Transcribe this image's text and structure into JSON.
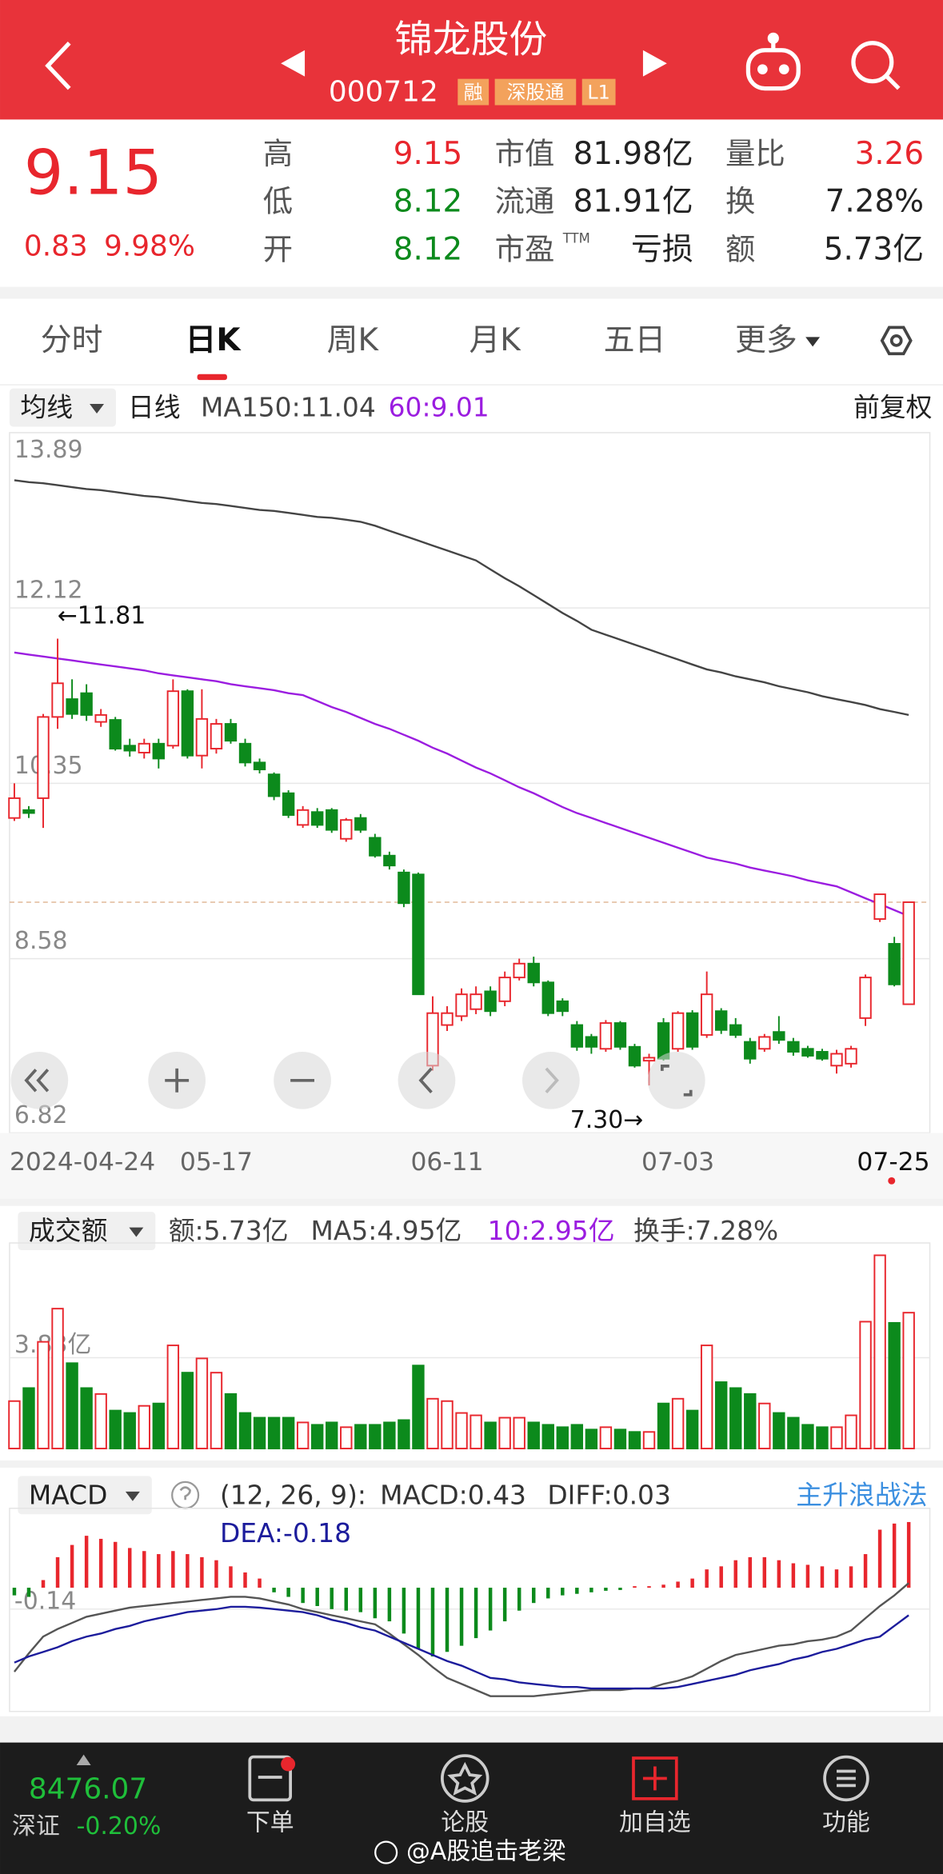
{
  "header": {
    "title": "锦龙股份",
    "code": "000712",
    "badges": [
      "融",
      "深股通",
      "L1"
    ]
  },
  "quote": {
    "price": "9.15",
    "change": "0.83",
    "pct": "9.98%",
    "stats": [
      {
        "label": "高",
        "value": "9.15"
      },
      {
        "label": "低",
        "value": "8.12"
      },
      {
        "label": "开",
        "value": "8.12"
      },
      {
        "label": "市值",
        "value": "81.98亿"
      },
      {
        "label": "流通",
        "value": "81.91亿"
      },
      {
        "label": "市盈",
        "sup": "TTM",
        "value": "亏损"
      },
      {
        "label": "量比",
        "value": "3.26"
      },
      {
        "label": "换",
        "value": "7.28%"
      },
      {
        "label": "额",
        "value": "5.73亿"
      }
    ]
  },
  "tabs": [
    "分时",
    "日K",
    "周K",
    "月K",
    "五日",
    "更多"
  ],
  "chart_data": [
    {
      "type": "candlestick",
      "legend": {
        "selector": "均线",
        "period": "日线",
        "ma150": "MA150:11.04",
        "ma60": "60:9.01",
        "adjust": "前复权"
      },
      "categories": [
        "2024-04-24",
        null,
        null,
        null,
        null,
        null,
        null,
        null,
        null,
        null,
        null,
        null,
        null,
        null,
        "05-17",
        null,
        null,
        null,
        null,
        null,
        null,
        null,
        null,
        null,
        null,
        null,
        null,
        null,
        null,
        null,
        "06-11",
        null,
        null,
        null,
        null,
        null,
        null,
        null,
        null,
        null,
        null,
        null,
        null,
        null,
        null,
        null,
        "07-03",
        null,
        null,
        null,
        null,
        null,
        null,
        null,
        null,
        null,
        null,
        null,
        null,
        null,
        null,
        null,
        "07-25"
      ],
      "open": [
        10.0,
        10.08,
        10.2,
        11.02,
        11.2,
        11.26,
        10.97,
        10.99,
        10.73,
        10.66,
        10.75,
        10.73,
        11.28,
        10.63,
        10.7,
        10.95,
        10.75,
        10.56,
        10.44,
        10.25,
        9.93,
        10.06,
        10.08,
        9.79,
        10.0,
        9.8,
        9.62,
        9.45,
        9.43,
        7.5,
        7.91,
        8.0,
        8.07,
        8.25,
        8.15,
        8.39,
        8.53,
        8.34,
        8.15,
        7.91,
        7.79,
        7.67,
        7.93,
        7.69,
        7.55,
        7.93,
        7.67,
        8.03,
        7.81,
        8.05,
        7.91,
        7.74,
        7.67,
        7.84,
        7.74,
        7.67,
        7.64,
        7.5,
        7.52,
        7.98,
        8.98,
        8.73,
        8.12
      ],
      "close": [
        10.2,
        10.05,
        11.02,
        11.36,
        11.05,
        11.04,
        11.04,
        10.7,
        10.68,
        10.75,
        10.6,
        11.28,
        10.63,
        11.0,
        10.95,
        10.78,
        10.56,
        10.49,
        10.22,
        10.03,
        10.08,
        9.93,
        9.88,
        9.98,
        9.88,
        9.62,
        9.52,
        9.14,
        8.22,
        8.03,
        8.03,
        8.22,
        8.22,
        8.05,
        8.39,
        8.53,
        8.34,
        8.03,
        8.05,
        7.69,
        7.69,
        7.93,
        7.69,
        7.5,
        7.58,
        7.57,
        8.03,
        7.69,
        8.22,
        7.86,
        7.81,
        7.57,
        7.79,
        7.76,
        7.64,
        7.6,
        7.57,
        7.62,
        7.67,
        8.39,
        9.23,
        8.32,
        9.15
      ],
      "high": [
        10.35,
        10.12,
        11.05,
        11.81,
        11.4,
        11.35,
        11.1,
        11.02,
        10.8,
        10.8,
        10.8,
        11.4,
        11.3,
        11.3,
        11.0,
        11.0,
        10.8,
        10.6,
        10.46,
        10.28,
        10.12,
        10.1,
        10.1,
        10.0,
        10.04,
        9.84,
        9.66,
        9.48,
        9.45,
        8.2,
        8.1,
        8.28,
        8.3,
        8.3,
        8.45,
        8.58,
        8.6,
        8.36,
        8.18,
        7.95,
        7.82,
        7.96,
        7.95,
        7.72,
        7.62,
        7.98,
        8.05,
        8.06,
        8.45,
        8.08,
        7.98,
        7.78,
        7.82,
        8.0,
        7.78,
        7.7,
        7.67,
        7.66,
        7.7,
        8.42,
        9.23,
        8.8,
        9.15
      ],
      "low": [
        9.97,
        10.0,
        9.9,
        10.9,
        11.0,
        10.98,
        10.92,
        10.68,
        10.62,
        10.6,
        10.5,
        10.7,
        10.6,
        10.5,
        10.65,
        10.75,
        10.52,
        10.45,
        10.18,
        10.0,
        9.9,
        9.9,
        9.85,
        9.76,
        9.85,
        9.6,
        9.48,
        9.1,
        8.22,
        7.45,
        7.85,
        7.95,
        8.02,
        8.0,
        8.1,
        8.36,
        8.3,
        8.0,
        8.0,
        7.65,
        7.62,
        7.64,
        7.66,
        7.48,
        7.3,
        7.55,
        7.64,
        7.66,
        7.78,
        7.82,
        7.78,
        7.52,
        7.64,
        7.72,
        7.6,
        7.58,
        7.55,
        7.42,
        7.48,
        7.9,
        8.95,
        8.3,
        8.12
      ],
      "up_color": "#e8262d",
      "down_color": "#0c8a1c",
      "series": [
        {
          "color": "#444444",
          "values": [
            13.41,
            13.39,
            13.38,
            13.36,
            13.34,
            13.32,
            13.31,
            13.29,
            13.27,
            13.25,
            13.24,
            13.22,
            13.2,
            13.18,
            13.17,
            13.15,
            13.13,
            13.11,
            13.1,
            13.08,
            13.06,
            13.04,
            13.03,
            13.01,
            12.99,
            12.95,
            12.9,
            12.85,
            12.8,
            12.75,
            12.7,
            12.65,
            12.6,
            12.51,
            12.42,
            12.34,
            12.25,
            12.16,
            12.07,
            11.99,
            11.9,
            11.85,
            11.8,
            11.75,
            11.7,
            11.65,
            11.6,
            11.55,
            11.5,
            11.47,
            11.43,
            11.4,
            11.37,
            11.33,
            11.3,
            11.27,
            11.23,
            11.2,
            11.17,
            11.14,
            11.1,
            11.07,
            11.04
          ]
        },
        {
          "color": "#9b1de0",
          "values": [
            11.67,
            11.65,
            11.63,
            11.61,
            11.59,
            11.57,
            11.55,
            11.53,
            11.51,
            11.49,
            11.46,
            11.44,
            11.42,
            11.4,
            11.38,
            11.35,
            11.33,
            11.31,
            11.29,
            11.26,
            11.24,
            11.18,
            11.12,
            11.07,
            11.01,
            10.95,
            10.9,
            10.84,
            10.78,
            10.71,
            10.65,
            10.58,
            10.51,
            10.45,
            10.38,
            10.31,
            10.25,
            10.18,
            10.11,
            10.05,
            10.0,
            9.95,
            9.9,
            9.85,
            9.8,
            9.75,
            9.7,
            9.65,
            9.6,
            9.57,
            9.54,
            9.5,
            9.47,
            9.44,
            9.41,
            9.37,
            9.34,
            9.31,
            9.25,
            9.19,
            9.13,
            9.07,
            9.01
          ]
        }
      ],
      "ylim": [
        6.82,
        13.89
      ],
      "yticks": [
        13.89,
        12.12,
        10.35,
        8.58,
        6.82
      ],
      "grid": true,
      "annotations": [
        "←11.81",
        "7.30→"
      ]
    },
    {
      "type": "bar",
      "legend": {
        "selector": "成交额",
        "amount": "额:5.73亿",
        "ma5": "MA5:4.95亿",
        "ma10": "10:2.95亿",
        "turnover": "换手:7.28%"
      },
      "values": [
        2.0,
        2.55,
        4.5,
        5.9,
        3.6,
        2.55,
        2.3,
        1.6,
        1.5,
        1.8,
        1.9,
        4.35,
        3.2,
        3.8,
        3.2,
        2.3,
        1.5,
        1.3,
        1.3,
        1.3,
        1.1,
        1.0,
        1.1,
        0.9,
        1.0,
        1.0,
        1.1,
        1.2,
        3.5,
        2.1,
        2.0,
        1.5,
        1.4,
        1.1,
        1.3,
        1.3,
        1.1,
        1.0,
        0.9,
        1.0,
        0.8,
        0.9,
        0.8,
        0.7,
        0.7,
        1.9,
        2.1,
        1.6,
        4.35,
        2.8,
        2.55,
        2.3,
        1.9,
        1.5,
        1.3,
        1.0,
        0.9,
        0.9,
        1.4,
        5.35,
        8.15,
        5.3,
        5.73
      ],
      "ylim": [
        0,
        8.67
      ],
      "yticks": [
        {
          "value": 3.83,
          "label": "3.83亿"
        }
      ]
    },
    {
      "type": "macd",
      "legend": {
        "selector": "MACD",
        "params": "(12, 26, 9):",
        "macd": "MACD:0.43",
        "diff": "DIFF:0.03",
        "dea": "DEA:-0.18",
        "strategy": "主升浪战法"
      },
      "values": [
        -0.05,
        -0.06,
        0.05,
        0.2,
        0.28,
        0.34,
        0.32,
        0.3,
        0.26,
        0.24,
        0.22,
        0.24,
        0.22,
        0.2,
        0.18,
        0.14,
        0.1,
        0.06,
        -0.03,
        -0.06,
        -0.1,
        -0.12,
        -0.14,
        -0.15,
        -0.16,
        -0.2,
        -0.22,
        -0.3,
        -0.4,
        -0.45,
        -0.42,
        -0.38,
        -0.33,
        -0.28,
        -0.22,
        -0.15,
        -0.1,
        -0.07,
        -0.05,
        -0.04,
        -0.03,
        -0.02,
        -0.015,
        0.01,
        0.01,
        0.02,
        0.04,
        0.06,
        0.12,
        0.14,
        0.18,
        0.2,
        0.2,
        0.18,
        0.16,
        0.15,
        0.14,
        0.12,
        0.14,
        0.22,
        0.38,
        0.42,
        0.43
      ],
      "series": [
        {
          "color": "#555555",
          "values": [
            -0.55,
            -0.43,
            -0.32,
            -0.27,
            -0.23,
            -0.19,
            -0.17,
            -0.15,
            -0.13,
            -0.12,
            -0.11,
            -0.1,
            -0.09,
            -0.08,
            -0.07,
            -0.06,
            -0.06,
            -0.07,
            -0.09,
            -0.11,
            -0.14,
            -0.16,
            -0.18,
            -0.2,
            -0.22,
            -0.24,
            -0.3,
            -0.37,
            -0.44,
            -0.52,
            -0.59,
            -0.63,
            -0.67,
            -0.71,
            -0.71,
            -0.71,
            -0.71,
            -0.7,
            -0.69,
            -0.68,
            -0.67,
            -0.67,
            -0.67,
            -0.66,
            -0.66,
            -0.63,
            -0.61,
            -0.58,
            -0.53,
            -0.48,
            -0.44,
            -0.42,
            -0.4,
            -0.38,
            -0.37,
            -0.35,
            -0.34,
            -0.32,
            -0.28,
            -0.2,
            -0.12,
            -0.05,
            0.03
          ]
        },
        {
          "color": "#1c1c9c",
          "values": [
            -0.49,
            -0.45,
            -0.42,
            -0.39,
            -0.35,
            -0.32,
            -0.3,
            -0.27,
            -0.25,
            -0.22,
            -0.2,
            -0.18,
            -0.16,
            -0.15,
            -0.14,
            -0.125,
            -0.125,
            -0.13,
            -0.14,
            -0.15,
            -0.16,
            -0.18,
            -0.21,
            -0.23,
            -0.26,
            -0.28,
            -0.32,
            -0.36,
            -0.4,
            -0.44,
            -0.48,
            -0.51,
            -0.55,
            -0.59,
            -0.6,
            -0.62,
            -0.63,
            -0.64,
            -0.65,
            -0.65,
            -0.66,
            -0.66,
            -0.66,
            -0.66,
            -0.66,
            -0.66,
            -0.65,
            -0.63,
            -0.61,
            -0.59,
            -0.57,
            -0.54,
            -0.52,
            -0.5,
            -0.47,
            -0.45,
            -0.42,
            -0.4,
            -0.37,
            -0.34,
            -0.32,
            -0.25,
            -0.18
          ]
        }
      ],
      "ylim": [
        -0.81,
        0.52
      ],
      "yticks": [
        -0.14
      ]
    }
  ],
  "bottom": {
    "index_value": "8476.07",
    "index_name": "深证",
    "index_change": "-0.20%",
    "nav": [
      "下单",
      "论股",
      "加自选",
      "功能"
    ],
    "watermark": "@A股追击老梁"
  }
}
